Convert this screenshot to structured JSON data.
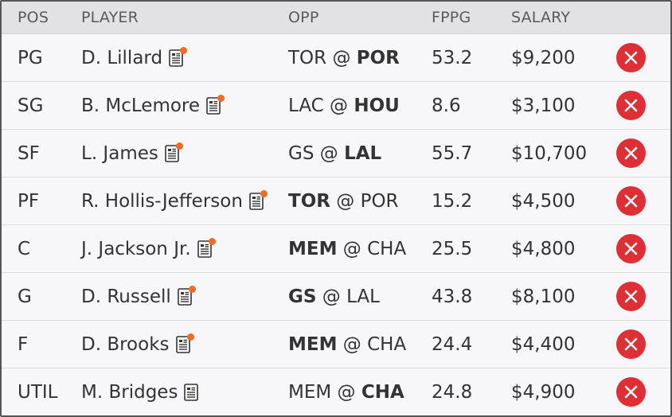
{
  "header": {
    "pos": "POS",
    "player": "PLAYER",
    "opp": "OPP",
    "fppg": "FPPG",
    "salary": "SALARY"
  },
  "colors": {
    "remove_button": "#df2f35",
    "news_alert_dot": "#f26b21",
    "header_bg": "#e2e2e4",
    "row_bg": "#f7f7f9"
  },
  "icons": {
    "news": "news-article-icon",
    "remove": "close-x-icon"
  },
  "rows": [
    {
      "pos": "PG",
      "player": "D. Lillard",
      "news_alert": true,
      "opp_away": "TOR",
      "opp_sep": " @ ",
      "opp_home": "POR",
      "bold_team": "home",
      "fppg": "53.2",
      "salary": "$9,200"
    },
    {
      "pos": "SG",
      "player": "B. McLemore",
      "news_alert": true,
      "opp_away": "LAC",
      "opp_sep": " @ ",
      "opp_home": "HOU",
      "bold_team": "home",
      "fppg": "8.6",
      "salary": "$3,100"
    },
    {
      "pos": "SF",
      "player": "L. James",
      "news_alert": true,
      "opp_away": "GS",
      "opp_sep": " @ ",
      "opp_home": "LAL",
      "bold_team": "home",
      "fppg": "55.7",
      "salary": "$10,700"
    },
    {
      "pos": "PF",
      "player": "R. Hollis-Jefferson",
      "news_alert": true,
      "opp_away": "TOR",
      "opp_sep": " @ ",
      "opp_home": "POR",
      "bold_team": "away",
      "fppg": "15.2",
      "salary": "$4,500"
    },
    {
      "pos": "C",
      "player": "J. Jackson Jr.",
      "news_alert": true,
      "opp_away": "MEM",
      "opp_sep": " @ ",
      "opp_home": "CHA",
      "bold_team": "away",
      "fppg": "25.5",
      "salary": "$4,800"
    },
    {
      "pos": "G",
      "player": "D. Russell",
      "news_alert": true,
      "opp_away": "GS",
      "opp_sep": " @ ",
      "opp_home": "LAL",
      "bold_team": "away",
      "fppg": "43.8",
      "salary": "$8,100"
    },
    {
      "pos": "F",
      "player": "D. Brooks",
      "news_alert": true,
      "opp_away": "MEM",
      "opp_sep": " @ ",
      "opp_home": "CHA",
      "bold_team": "away",
      "fppg": "24.4",
      "salary": "$4,400"
    },
    {
      "pos": "UTIL",
      "player": "M. Bridges",
      "news_alert": false,
      "opp_away": "MEM",
      "opp_sep": " @ ",
      "opp_home": "CHA",
      "bold_team": "home",
      "fppg": "24.8",
      "salary": "$4,900"
    }
  ]
}
